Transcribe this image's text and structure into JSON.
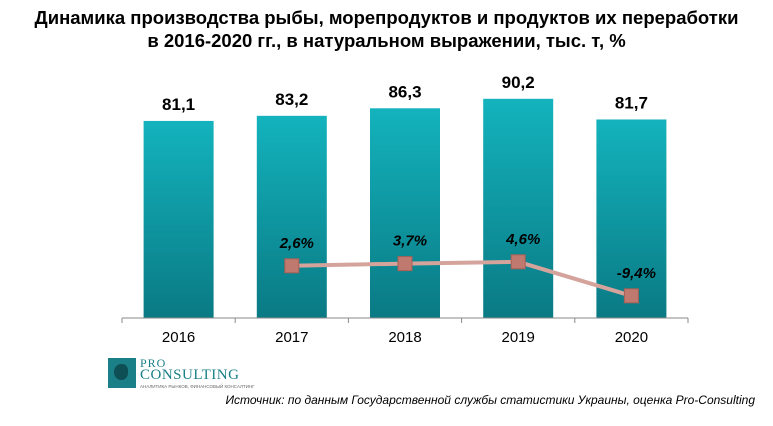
{
  "title_line1": "Динамика производства рыбы, морепродуктов и продуктов их переработки",
  "title_line2": "в 2016-2020 гг., в натуральном выражении, тыс. т, %",
  "source": "Источник: по данным Государственной службы статистики Украины, оценка Pro-Consulting",
  "logo": {
    "pro": "PRO",
    "consulting": "CONSULTING",
    "tagline": "АНАЛИТИКА РЫНКОВ, ФИНАНСОВЫЙ КОНСАЛТИНГ"
  },
  "colors": {
    "bar_top": "#13b3bd",
    "bar_bottom": "#0a7a84",
    "line": "#d4a49c",
    "marker": "#c0796e",
    "marker_border": "#a85f55"
  },
  "chart_data": {
    "type": "bar",
    "categories": [
      "2016",
      "2017",
      "2018",
      "2019",
      "2020"
    ],
    "series": [
      {
        "type": "bar",
        "values": [
          81.1,
          83.2,
          86.3,
          90.2,
          81.7
        ],
        "labels": [
          "81,1",
          "83,2",
          "86,3",
          "90,2",
          "81,7"
        ]
      },
      {
        "type": "line",
        "values": [
          null,
          2.6,
          3.7,
          4.6,
          -9.4
        ],
        "labels": [
          "",
          "2,6%",
          "3,7%",
          "4,6%",
          "-9,4%"
        ]
      }
    ],
    "legend": "none",
    "grid": false
  }
}
